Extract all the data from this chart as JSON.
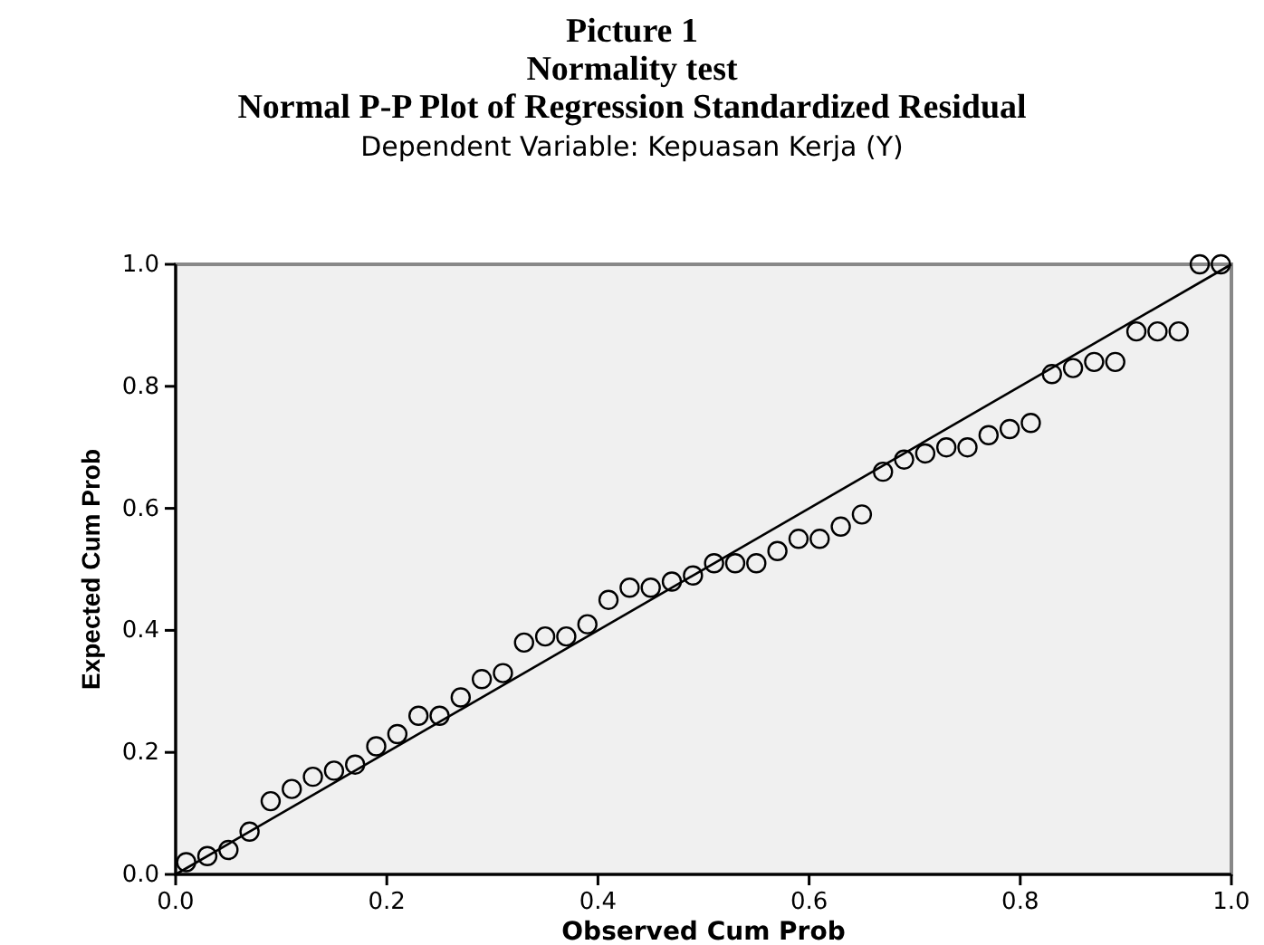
{
  "chart_data": {
    "type": "scatter",
    "annotations": [
      "Picture 1",
      "Normality test"
    ],
    "title": "Normal P-P Plot of Regression Standardized Residual",
    "subtitle": "Dependent Variable: Kepuasan Kerja (Y)",
    "xlabel": "Observed Cum Prob",
    "ylabel": "Expected Cum Prob",
    "xlim": [
      0,
      1
    ],
    "ylim": [
      0,
      1
    ],
    "xticks": [
      {
        "value": 0,
        "label": "0.0"
      },
      {
        "value": 0.2,
        "label": "0.2"
      },
      {
        "value": 0.4,
        "label": "0.4"
      },
      {
        "value": 0.6,
        "label": "0.6"
      },
      {
        "value": 0.8,
        "label": "0.8"
      },
      {
        "value": 1,
        "label": "1.0"
      }
    ],
    "yticks": [
      {
        "value": 0,
        "label": "0.0"
      },
      {
        "value": 0.2,
        "label": "0.2"
      },
      {
        "value": 0.4,
        "label": "0.4"
      },
      {
        "value": 0.6,
        "label": "0.6"
      },
      {
        "value": 0.8,
        "label": "0.8"
      },
      {
        "value": 1,
        "label": "1.0"
      }
    ],
    "grid": false,
    "series": [
      {
        "marker": "circle",
        "color": "#000000",
        "x": [
          0.01,
          0.03,
          0.05,
          0.07,
          0.09,
          0.11,
          0.13,
          0.15,
          0.17,
          0.19,
          0.21,
          0.23,
          0.25,
          0.27,
          0.29,
          0.31,
          0.33,
          0.35,
          0.37,
          0.39,
          0.41,
          0.43,
          0.45,
          0.47,
          0.49,
          0.51,
          0.53,
          0.55,
          0.57,
          0.59,
          0.61,
          0.63,
          0.65,
          0.67,
          0.69,
          0.71,
          0.73,
          0.75,
          0.77,
          0.79,
          0.81,
          0.83,
          0.85,
          0.87,
          0.89,
          0.91,
          0.93,
          0.95,
          0.97,
          0.99
        ],
        "values": [
          0.02,
          0.03,
          0.04,
          0.07,
          0.12,
          0.14,
          0.16,
          0.17,
          0.18,
          0.21,
          0.23,
          0.26,
          0.26,
          0.29,
          0.32,
          0.33,
          0.38,
          0.39,
          0.39,
          0.41,
          0.45,
          0.47,
          0.47,
          0.48,
          0.49,
          0.51,
          0.51,
          0.51,
          0.53,
          0.55,
          0.55,
          0.57,
          0.59,
          0.66,
          0.68,
          0.69,
          0.7,
          0.7,
          0.72,
          0.73,
          0.74,
          0.82,
          0.83,
          0.84,
          0.84,
          0.89,
          0.89,
          0.89,
          1.0,
          1.0
        ]
      },
      {
        "type": "line",
        "marker": "none",
        "line_style": "solid",
        "color": "#000000",
        "x": [
          0,
          1
        ],
        "values": [
          0,
          1
        ]
      }
    ]
  }
}
